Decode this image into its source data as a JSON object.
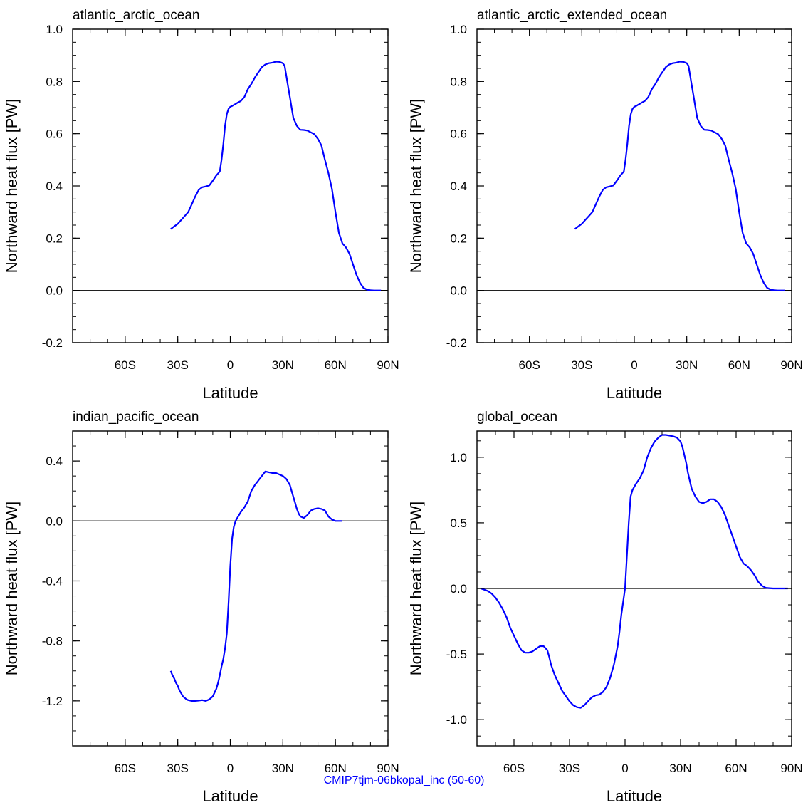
{
  "footer": {
    "text": "CMIP7tjm-06bkopal_inc (50-60)",
    "color": "#0000ff"
  },
  "style": {
    "line_color": "#0000ff",
    "zero_line_color": "#000000",
    "axis_color": "#000000"
  },
  "chart_data": [
    {
      "type": "line",
      "title": "atlantic_arctic_ocean",
      "xlabel": "Latitude",
      "ylabel": "Northward heat flux [PW]",
      "xlim": [
        -90,
        90
      ],
      "ylim": [
        -0.2,
        1.0
      ],
      "x_ticks": [
        -60,
        -30,
        0,
        30,
        60,
        90
      ],
      "x_tick_labels": [
        "60S",
        "30S",
        "0",
        "30N",
        "60N",
        "90N"
      ],
      "y_ticks": [
        -0.2,
        0.0,
        0.2,
        0.4,
        0.6,
        0.8,
        1.0
      ],
      "y_tick_labels": [
        "-0.2",
        "0.0",
        "0.2",
        "0.4",
        "0.6",
        "0.8",
        "1.0"
      ],
      "zero_line": true,
      "grid": false,
      "series": [
        {
          "x": [
            -34,
            -32,
            -30,
            -28,
            -26,
            -24,
            -22,
            -20,
            -18,
            -16,
            -14,
            -12,
            -10,
            -8,
            -6,
            -5,
            -4,
            -3,
            -2,
            -1,
            0,
            1,
            2,
            3,
            4,
            6,
            8,
            10,
            12,
            14,
            16,
            18,
            20,
            22,
            24,
            26,
            28,
            30,
            31,
            32,
            33,
            34,
            35,
            36,
            38,
            40,
            42,
            44,
            46,
            48,
            50,
            52,
            54,
            56,
            58,
            60,
            62,
            64,
            66,
            68,
            70,
            72,
            74,
            76,
            78,
            80,
            82,
            84,
            86
          ],
          "y": [
            0.235,
            0.245,
            0.255,
            0.27,
            0.285,
            0.3,
            0.33,
            0.36,
            0.385,
            0.395,
            0.398,
            0.402,
            0.42,
            0.44,
            0.455,
            0.5,
            0.56,
            0.63,
            0.675,
            0.695,
            0.703,
            0.706,
            0.71,
            0.714,
            0.718,
            0.725,
            0.74,
            0.77,
            0.79,
            0.815,
            0.835,
            0.855,
            0.865,
            0.87,
            0.872,
            0.876,
            0.875,
            0.87,
            0.86,
            0.82,
            0.78,
            0.74,
            0.7,
            0.66,
            0.63,
            0.615,
            0.614,
            0.612,
            0.605,
            0.598,
            0.58,
            0.555,
            0.5,
            0.45,
            0.39,
            0.3,
            0.22,
            0.18,
            0.165,
            0.14,
            0.1,
            0.06,
            0.03,
            0.01,
            0.003,
            0.001,
            0.0,
            0.0,
            0.0
          ]
        }
      ]
    },
    {
      "type": "line",
      "title": "atlantic_arctic_extended_ocean",
      "xlabel": "Latitude",
      "ylabel": "Northward heat flux [PW]",
      "xlim": [
        -90,
        90
      ],
      "ylim": [
        -0.2,
        1.0
      ],
      "x_ticks": [
        -60,
        -30,
        0,
        30,
        60,
        90
      ],
      "x_tick_labels": [
        "60S",
        "30S",
        "0",
        "30N",
        "60N",
        "90N"
      ],
      "y_ticks": [
        -0.2,
        0.0,
        0.2,
        0.4,
        0.6,
        0.8,
        1.0
      ],
      "y_tick_labels": [
        "-0.2",
        "0.0",
        "0.2",
        "0.4",
        "0.6",
        "0.8",
        "1.0"
      ],
      "zero_line": true,
      "grid": false,
      "series": [
        {
          "x": [
            -34,
            -32,
            -30,
            -28,
            -26,
            -24,
            -22,
            -20,
            -18,
            -16,
            -14,
            -12,
            -10,
            -8,
            -6,
            -5,
            -4,
            -3,
            -2,
            -1,
            0,
            1,
            2,
            3,
            4,
            6,
            8,
            10,
            12,
            14,
            16,
            18,
            20,
            22,
            24,
            26,
            28,
            30,
            31,
            32,
            33,
            34,
            35,
            36,
            38,
            40,
            42,
            44,
            46,
            48,
            50,
            52,
            54,
            56,
            58,
            60,
            62,
            64,
            66,
            68,
            70,
            72,
            74,
            76,
            78,
            80,
            82,
            84,
            86
          ],
          "y": [
            0.235,
            0.245,
            0.255,
            0.27,
            0.285,
            0.3,
            0.33,
            0.36,
            0.385,
            0.395,
            0.398,
            0.402,
            0.42,
            0.44,
            0.455,
            0.5,
            0.56,
            0.63,
            0.675,
            0.695,
            0.703,
            0.706,
            0.71,
            0.714,
            0.718,
            0.725,
            0.74,
            0.77,
            0.79,
            0.815,
            0.835,
            0.855,
            0.865,
            0.87,
            0.872,
            0.876,
            0.875,
            0.87,
            0.86,
            0.82,
            0.78,
            0.74,
            0.7,
            0.66,
            0.63,
            0.615,
            0.614,
            0.612,
            0.605,
            0.598,
            0.58,
            0.555,
            0.5,
            0.45,
            0.39,
            0.3,
            0.22,
            0.18,
            0.165,
            0.14,
            0.1,
            0.06,
            0.03,
            0.01,
            0.003,
            0.001,
            0.0,
            0.0,
            0.0
          ]
        }
      ]
    },
    {
      "type": "line",
      "title": "indian_pacific_ocean",
      "xlabel": "Latitude",
      "ylabel": "Northward heat flux [PW]",
      "xlim": [
        -90,
        90
      ],
      "ylim": [
        -1.5,
        0.6
      ],
      "x_ticks": [
        -60,
        -30,
        0,
        30,
        60,
        90
      ],
      "x_tick_labels": [
        "60S",
        "30S",
        "0",
        "30N",
        "60N",
        "90N"
      ],
      "y_ticks": [
        -1.2,
        -0.8,
        -0.4,
        0.0,
        0.4
      ],
      "y_tick_labels": [
        "-1.2",
        "-0.8",
        "-0.4",
        "0.0",
        "0.4"
      ],
      "zero_line": true,
      "grid": false,
      "series": [
        {
          "x": [
            -34,
            -33,
            -32,
            -31,
            -30,
            -29,
            -28,
            -27,
            -26,
            -25,
            -24,
            -22,
            -20,
            -18,
            -16,
            -14,
            -12,
            -10,
            -8,
            -7,
            -6,
            -5,
            -4,
            -3,
            -2,
            -1,
            0,
            1,
            2,
            3,
            4,
            6,
            8,
            10,
            12,
            14,
            16,
            18,
            20,
            22,
            24,
            26,
            28,
            30,
            32,
            34,
            35,
            36,
            37,
            38,
            39,
            40,
            42,
            44,
            46,
            48,
            50,
            52,
            54,
            56,
            58,
            60,
            62,
            64
          ],
          "y": [
            -1.0,
            -1.03,
            -1.05,
            -1.08,
            -1.1,
            -1.13,
            -1.15,
            -1.17,
            -1.18,
            -1.19,
            -1.195,
            -1.2,
            -1.2,
            -1.198,
            -1.195,
            -1.2,
            -1.19,
            -1.17,
            -1.12,
            -1.08,
            -1.03,
            -0.97,
            -0.92,
            -0.85,
            -0.75,
            -0.55,
            -0.3,
            -0.12,
            -0.04,
            0.0,
            0.02,
            0.06,
            0.09,
            0.13,
            0.2,
            0.24,
            0.27,
            0.3,
            0.33,
            0.325,
            0.32,
            0.32,
            0.31,
            0.3,
            0.28,
            0.24,
            0.2,
            0.16,
            0.12,
            0.08,
            0.05,
            0.03,
            0.02,
            0.04,
            0.07,
            0.08,
            0.085,
            0.08,
            0.07,
            0.03,
            0.01,
            0.0,
            0.0,
            0.0
          ]
        }
      ]
    },
    {
      "type": "line",
      "title": "global_ocean",
      "xlabel": "Latitude",
      "ylabel": "Northward heat flux [PW]",
      "xlim": [
        -80,
        90
      ],
      "ylim": [
        -1.2,
        1.2
      ],
      "x_ticks": [
        -60,
        -30,
        0,
        30,
        60,
        90
      ],
      "x_tick_labels": [
        "60S",
        "30S",
        "0",
        "30N",
        "60N",
        "90N"
      ],
      "y_ticks": [
        -1.0,
        -0.5,
        0.0,
        0.5,
        1.0
      ],
      "y_tick_labels": [
        "-1.0",
        "-0.5",
        "0.0",
        "0.5",
        "1.0"
      ],
      "zero_line": true,
      "grid": false,
      "series": [
        {
          "x": [
            -78,
            -76,
            -74,
            -72,
            -70,
            -68,
            -66,
            -64,
            -62,
            -60,
            -58,
            -56,
            -54,
            -52,
            -50,
            -48,
            -46,
            -44,
            -42,
            -41,
            -40,
            -39,
            -38,
            -36,
            -34,
            -32,
            -30,
            -28,
            -26,
            -24,
            -22,
            -20,
            -18,
            -16,
            -14,
            -12,
            -10,
            -8,
            -6,
            -4,
            -3,
            -2,
            -1,
            0,
            1,
            2,
            3,
            4,
            6,
            8,
            10,
            12,
            14,
            16,
            18,
            20,
            22,
            24,
            26,
            28,
            30,
            31,
            32,
            33,
            34,
            35,
            36,
            38,
            40,
            42,
            44,
            46,
            48,
            50,
            52,
            54,
            56,
            58,
            60,
            62,
            64,
            66,
            68,
            70,
            72,
            74,
            76,
            78,
            80,
            82,
            84,
            86,
            88
          ],
          "y": [
            0.0,
            -0.01,
            -0.02,
            -0.04,
            -0.07,
            -0.11,
            -0.16,
            -0.22,
            -0.3,
            -0.36,
            -0.42,
            -0.47,
            -0.49,
            -0.49,
            -0.48,
            -0.46,
            -0.44,
            -0.44,
            -0.47,
            -0.52,
            -0.58,
            -0.62,
            -0.66,
            -0.72,
            -0.78,
            -0.82,
            -0.86,
            -0.89,
            -0.905,
            -0.91,
            -0.89,
            -0.86,
            -0.83,
            -0.815,
            -0.81,
            -0.79,
            -0.75,
            -0.68,
            -0.58,
            -0.44,
            -0.33,
            -0.2,
            -0.1,
            0.0,
            0.25,
            0.5,
            0.7,
            0.75,
            0.8,
            0.84,
            0.9,
            1.0,
            1.07,
            1.12,
            1.15,
            1.17,
            1.17,
            1.165,
            1.16,
            1.15,
            1.12,
            1.08,
            1.02,
            0.96,
            0.88,
            0.82,
            0.76,
            0.7,
            0.66,
            0.65,
            0.66,
            0.68,
            0.68,
            0.66,
            0.62,
            0.56,
            0.48,
            0.4,
            0.32,
            0.24,
            0.19,
            0.17,
            0.14,
            0.1,
            0.05,
            0.02,
            0.005,
            0.002,
            0.0,
            0.0,
            0.0,
            0.0,
            0.0
          ]
        }
      ]
    }
  ]
}
